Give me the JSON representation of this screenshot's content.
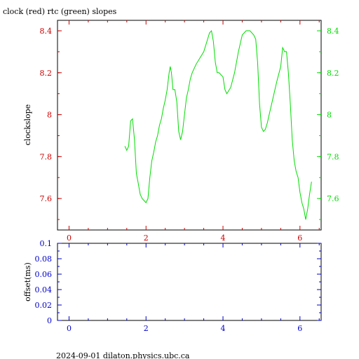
{
  "title": "clock (red) rtc (green) slopes",
  "footer": "2024-09-01 dilaton.physics.ubc.ca",
  "colors": {
    "red": "#cc0000",
    "green": "#00dd00",
    "blue": "#0000cc",
    "frame": "#000000"
  },
  "chart_data": [
    {
      "type": "line",
      "ylabel": "clockslope",
      "xlim": [
        -0.3,
        6.55
      ],
      "ylim": [
        7.45,
        8.45
      ],
      "x_ticks": [
        0,
        2,
        4,
        6
      ],
      "y_ticks": [
        7.6,
        7.8,
        8,
        8.2,
        8.4
      ],
      "y_tick_labels": [
        "7.6",
        "7.8",
        "8",
        "8.2",
        "8.4"
      ],
      "series": [
        {
          "color": "green",
          "x": [
            1.45,
            1.5,
            1.55,
            1.6,
            1.65,
            1.7,
            1.75,
            1.8,
            1.85,
            1.9,
            1.95,
            2.0,
            2.05,
            2.1,
            2.15,
            2.2,
            2.25,
            2.3,
            2.35,
            2.4,
            2.45,
            2.5,
            2.55,
            2.6,
            2.63,
            2.66,
            2.7,
            2.75,
            2.8,
            2.85,
            2.9,
            2.95,
            3.0,
            3.05,
            3.1,
            3.15,
            3.2,
            3.3,
            3.4,
            3.5,
            3.6,
            3.65,
            3.7,
            3.75,
            3.8,
            3.85,
            3.9,
            4.0,
            4.05,
            4.1,
            4.2,
            4.3,
            4.4,
            4.5,
            4.6,
            4.7,
            4.8,
            4.85,
            4.9,
            4.95,
            5.0,
            5.05,
            5.1,
            5.15,
            5.2,
            5.3,
            5.4,
            5.5,
            5.55,
            5.6,
            5.65,
            5.7,
            5.75,
            5.8,
            5.85,
            5.9,
            5.95,
            6.0,
            6.05,
            6.1,
            6.15,
            6.2,
            6.25,
            6.3
          ],
          "y": [
            7.85,
            7.83,
            7.85,
            7.97,
            7.98,
            7.88,
            7.72,
            7.67,
            7.62,
            7.6,
            7.59,
            7.58,
            7.6,
            7.7,
            7.78,
            7.82,
            7.87,
            7.9,
            7.95,
            7.98,
            8.03,
            8.07,
            8.12,
            8.2,
            8.23,
            8.2,
            8.12,
            8.12,
            8.06,
            7.92,
            7.88,
            7.92,
            8.0,
            8.08,
            8.12,
            8.17,
            8.2,
            8.24,
            8.27,
            8.3,
            8.36,
            8.39,
            8.4,
            8.35,
            8.25,
            8.2,
            8.2,
            8.18,
            8.12,
            8.1,
            8.13,
            8.2,
            8.3,
            8.38,
            8.4,
            8.4,
            8.38,
            8.36,
            8.25,
            8.05,
            7.94,
            7.92,
            7.93,
            7.96,
            8.0,
            8.08,
            8.16,
            8.23,
            8.32,
            8.3,
            8.3,
            8.2,
            8.05,
            7.88,
            7.78,
            7.73,
            7.7,
            7.63,
            7.58,
            7.55,
            7.5,
            7.55,
            7.62,
            7.68
          ]
        }
      ]
    },
    {
      "type": "line",
      "ylabel": "offset(ms)",
      "xlim": [
        -0.3,
        6.55
      ],
      "ylim": [
        0,
        0.1
      ],
      "x_ticks": [
        0,
        2,
        4,
        6
      ],
      "y_ticks": [
        0,
        0.02,
        0.04,
        0.06,
        0.08,
        0.1
      ],
      "y_tick_labels": [
        "0",
        "0.02",
        "0.04",
        "0.06",
        "0.08",
        "0.1"
      ],
      "series": []
    }
  ]
}
